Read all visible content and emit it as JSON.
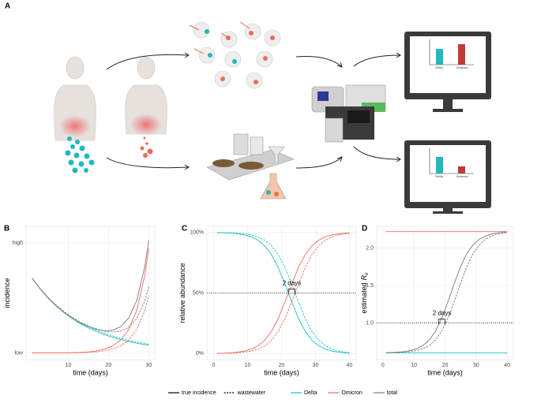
{
  "panel_a": {
    "label": "A",
    "screens": [
      {
        "bar_labels": [
          "Delta",
          "Omicron"
        ]
      },
      {
        "bar_labels": [
          "Delta",
          "Omicron"
        ]
      }
    ]
  },
  "chart_data": [
    {
      "type": "line",
      "panel_label": "B",
      "xlabel": "time (days)",
      "ylabel": "incidence",
      "x": [
        1,
        3,
        5,
        7,
        9,
        11,
        13,
        15,
        17,
        19,
        21,
        23,
        25,
        27,
        29,
        30
      ],
      "xlim": [
        -0.5,
        31.5
      ],
      "xticks": [
        10,
        20,
        30
      ],
      "ylim": [
        -0.06,
        1.15
      ],
      "yticks": [
        {
          "value": 0,
          "label": "low"
        },
        {
          "value": 1,
          "label": "high"
        }
      ],
      "grid": true,
      "series": [
        {
          "name": "Delta",
          "color": "#1fbfc4",
          "dashed": false,
          "values": [
            0.68,
            0.582,
            0.498,
            0.426,
            0.364,
            0.312,
            0.267,
            0.228,
            0.195,
            0.167,
            0.143,
            0.122,
            0.105,
            0.089,
            0.077,
            0.071
          ]
        },
        {
          "name": "Omicron",
          "color": "#f0695c",
          "dashed": false,
          "values": [
            0.0002,
            0.0003,
            0.0005,
            0.001,
            0.0017,
            0.0032,
            0.0058,
            0.0106,
            0.0192,
            0.035,
            0.0638,
            0.1164,
            0.212,
            0.386,
            0.704,
            0.95
          ]
        },
        {
          "name": "total",
          "color": "#7a7a7a",
          "dashed": false,
          "values": [
            0.68,
            0.582,
            0.499,
            0.427,
            0.366,
            0.315,
            0.273,
            0.239,
            0.214,
            0.202,
            0.207,
            0.238,
            0.317,
            0.475,
            0.781,
            1.021
          ]
        },
        {
          "name": "Delta",
          "color": "#1fbfc4",
          "dashed": true,
          "values": [
            0.68,
            0.585,
            0.503,
            0.433,
            0.373,
            0.322,
            0.278,
            0.24,
            0.207,
            0.179,
            0.155,
            0.134,
            0.116,
            0.1,
            0.086,
            0.08
          ]
        },
        {
          "name": "Omicron",
          "color": "#f0695c",
          "dashed": true,
          "values": [
            0.0001,
            0.0002,
            0.0003,
            0.0006,
            0.0009,
            0.0018,
            0.0032,
            0.0058,
            0.0105,
            0.0192,
            0.035,
            0.0639,
            0.1163,
            0.2118,
            0.386,
            0.521
          ]
        },
        {
          "name": "total",
          "color": "#7a7a7a",
          "dashed": true,
          "values": [
            0.68,
            0.585,
            0.503,
            0.434,
            0.374,
            0.324,
            0.281,
            0.246,
            0.218,
            0.198,
            0.19,
            0.198,
            0.232,
            0.312,
            0.472,
            0.601
          ]
        }
      ]
    },
    {
      "type": "line",
      "panel_label": "C",
      "xlabel": "time (days)",
      "ylabel": "relative abundance",
      "x": [
        1,
        3,
        5,
        7,
        9,
        11,
        13,
        15,
        17,
        19,
        21,
        23,
        25,
        27,
        29,
        31,
        33,
        35,
        37,
        39,
        40
      ],
      "xlim": [
        -2,
        42
      ],
      "xticks": [
        0,
        10,
        20,
        30,
        40
      ],
      "ylim": [
        -5,
        105
      ],
      "yticks": [
        {
          "value": 0,
          "label": "0%"
        },
        {
          "value": 50,
          "label": "50%"
        },
        {
          "value": 100,
          "label": "100%"
        }
      ],
      "grid": true,
      "hline": 50,
      "annotation": {
        "text": "2 days",
        "x": [
          22,
          24
        ],
        "y": 50
      },
      "series": [
        {
          "name": "Delta",
          "color": "#1fbfc4",
          "dashed": false,
          "values": [
            99.8,
            99.7,
            99.4,
            98.9,
            98.0,
            96.4,
            93.7,
            89.1,
            81.8,
            71.1,
            57.4,
            42.6,
            28.9,
            18.2,
            10.9,
            6.3,
            3.6,
            2.0,
            1.1,
            0.6,
            0.4
          ]
        },
        {
          "name": "Omicron",
          "color": "#f0695c",
          "dashed": false,
          "values": [
            0.2,
            0.3,
            0.6,
            1.1,
            2.0,
            3.6,
            6.3,
            10.9,
            18.2,
            28.9,
            42.6,
            57.4,
            71.1,
            81.8,
            89.1,
            93.7,
            96.4,
            98.0,
            98.9,
            99.4,
            99.6
          ]
        },
        {
          "name": "Delta",
          "color": "#1fbfc4",
          "dashed": true,
          "values": [
            99.9,
            99.8,
            99.7,
            99.4,
            98.9,
            98.0,
            96.4,
            93.7,
            89.1,
            81.8,
            71.1,
            57.4,
            42.6,
            28.9,
            18.2,
            10.9,
            6.3,
            3.6,
            2.0,
            1.1,
            0.8
          ]
        },
        {
          "name": "Omicron",
          "color": "#f0695c",
          "dashed": true,
          "values": [
            0.1,
            0.2,
            0.3,
            0.6,
            1.1,
            2.0,
            3.6,
            6.3,
            10.9,
            18.2,
            28.9,
            42.6,
            57.4,
            71.1,
            81.8,
            89.1,
            93.7,
            96.4,
            98.0,
            98.9,
            99.2
          ]
        }
      ]
    },
    {
      "type": "line",
      "panel_label": "D",
      "xlabel": "time (days)",
      "ylabel": "estimated",
      "ylabel_symbol": "R",
      "ylabel_subscript": "e",
      "x": [
        1,
        3,
        5,
        7,
        9,
        11,
        13,
        15,
        17,
        19,
        21,
        23,
        25,
        27,
        29,
        31,
        33,
        35,
        37,
        39,
        40
      ],
      "xlim": [
        -2,
        42
      ],
      "xticks": [
        0,
        10,
        20,
        30,
        40
      ],
      "ylim": [
        0.51,
        2.29
      ],
      "yticks": [
        {
          "value": 1,
          "label": "1.0"
        },
        {
          "value": 1.5,
          "label": "1.5"
        },
        {
          "value": 2,
          "label": "2.0"
        }
      ],
      "grid": true,
      "hline": 1,
      "annotation": {
        "text": "2 days",
        "x": [
          18,
          20
        ],
        "y": 1
      },
      "series": [
        {
          "name": "Delta",
          "color": "#1fbfc4",
          "dashed": false,
          "values": [
            0.6,
            0.6,
            0.6,
            0.6,
            0.6,
            0.6,
            0.6,
            0.6,
            0.6,
            0.6,
            0.6,
            0.6,
            0.6,
            0.6,
            0.6,
            0.6,
            0.6,
            0.6,
            0.6,
            0.6,
            0.6
          ]
        },
        {
          "name": "Omicron",
          "color": "#f0695c",
          "dashed": false,
          "values": [
            2.22,
            2.22,
            2.22,
            2.22,
            2.22,
            2.22,
            2.22,
            2.22,
            2.22,
            2.22,
            2.22,
            2.22,
            2.22,
            2.22,
            2.22,
            2.22,
            2.22,
            2.22,
            2.22,
            2.22,
            2.22
          ]
        },
        {
          "name": "total",
          "color": "#7a7a7a",
          "dashed": false,
          "values": [
            0.603,
            0.605,
            0.61,
            0.618,
            0.632,
            0.658,
            0.702,
            0.777,
            0.895,
            1.068,
            1.29,
            1.53,
            1.752,
            1.925,
            2.043,
            2.118,
            2.162,
            2.188,
            2.202,
            2.21,
            2.214
          ]
        },
        {
          "name": "total",
          "color": "#7a7a7a",
          "dashed": true,
          "values": [
            0.602,
            0.603,
            0.605,
            0.61,
            0.618,
            0.632,
            0.658,
            0.702,
            0.777,
            0.895,
            1.068,
            1.29,
            1.53,
            1.752,
            1.925,
            2.043,
            2.118,
            2.162,
            2.188,
            2.202,
            2.207
          ]
        }
      ]
    }
  ],
  "legend": {
    "linetypes": [
      {
        "name": "true incidence",
        "dashed": false
      },
      {
        "name": "wastewater",
        "dashed": true
      }
    ],
    "colors": [
      {
        "name": "Delta",
        "color": "#1fbfc4"
      },
      {
        "name": "Omicron",
        "color": "#f0695c"
      },
      {
        "name": "total",
        "color": "#7a7a7a"
      }
    ]
  }
}
